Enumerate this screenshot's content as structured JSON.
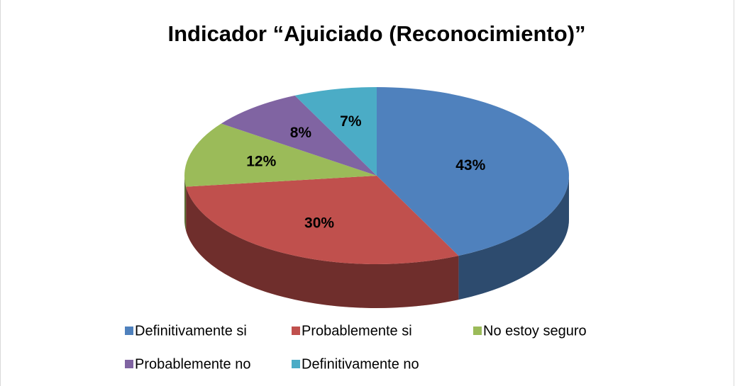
{
  "chart_data": {
    "type": "pie",
    "title": "Indicador “Ajuiciado (Reconocimiento)”",
    "categories": [
      "Definitivamente si",
      "Probablemente si",
      "No estoy seguro",
      "Probablemente no",
      "Definitivamente no"
    ],
    "values": [
      43,
      30,
      12,
      8,
      7
    ],
    "value_labels": [
      "43%",
      "30%",
      "12%",
      "8%",
      "7%"
    ],
    "colors": [
      "#4f81bd",
      "#c0504d",
      "#9bbb59",
      "#8064a2",
      "#4bacc6"
    ],
    "legend": "bottom"
  }
}
